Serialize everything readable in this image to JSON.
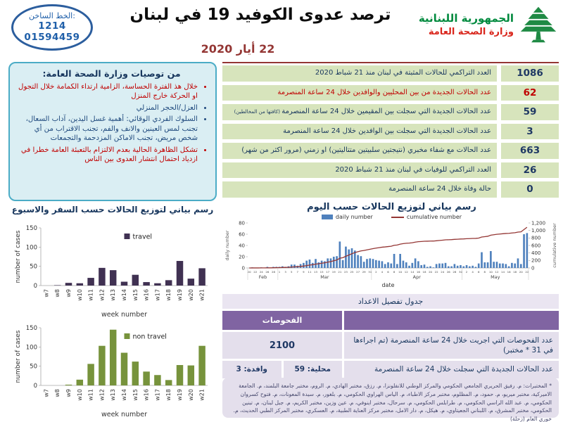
{
  "header": {
    "hotline": {
      "title": "الخط الساخن:",
      "line1": "1214",
      "line2": "01594459"
    },
    "title": "ترصد عدوى الكوفيد 19 في لبنان",
    "date": "22 أيار 2020",
    "ministry": {
      "name": "الجمهورية اللبنانية",
      "dept": "وزارة الصحة العامة"
    }
  },
  "recommendations": {
    "title": "من توصيات وزارة الصحة العامة:",
    "items": [
      {
        "text": "خلال هذ الفترة الحساسة، الزامية ارتداء الكمامة خلال التجول او الحركة خارج المنزل",
        "color": "red"
      },
      {
        "text": "العزل/الحجر المنزلي",
        "color": "blue"
      },
      {
        "text": "السلوك الفردي الوقائي: أهمية غسل اليدين، آداب السعال، تجنب لمس العينين والانف والفم، تجنب الاقتراب من أي شخص مريض، تجنب الاماكن المزدحمة والتجمعات",
        "color": "blue"
      },
      {
        "text": "تشكل الظاهرة الحالية بعدم الالتزام بالتعبئة العامة خطرا في ازدياد احتمال انتشار العدوى بين الناس",
        "color": "red"
      }
    ]
  },
  "stats": {
    "rows": [
      {
        "label": "العدد التراكمي للحالات المثبتة في لبنان منذ 21 شباط 2020",
        "value": "1086",
        "color": "blue"
      },
      {
        "label": "عدد الحالات الجديدة من بين المحليين والوافدين خلال 24 ساعة المنصرمة",
        "value": "62",
        "color": "red"
      },
      {
        "label": "عدد الحالات الجديدة التي سجلت بين المقيمين خلال 24 ساعة المنصرمة",
        "note": "(كافتها من المخالطين)",
        "value": "59",
        "color": "blue"
      },
      {
        "label": "عدد الحالات الجديدة التي سجلت بين الوافدين خلال 24 ساعة المنصرمة",
        "value": "3",
        "color": "blue"
      },
      {
        "label": "عدد الحالات مع شفاء مخبري (نتيجتين سلبيتين متتاليتين) او زمني (مرور اكثر من شهر)",
        "value": "663",
        "color": "blue"
      },
      {
        "label": "العدد التراكمي للوفيات في لبنان منذ 21 شباط 2020",
        "value": "26",
        "color": "blue"
      },
      {
        "label": "حالة وفاة خلال 24 ساعة المنصرمة",
        "value": "0",
        "color": "blue"
      }
    ]
  },
  "details_table": {
    "title": "جدول تفصيل الاعداد",
    "header": "الفحوصات",
    "rows": [
      {
        "label": "عدد الفحوصات التي اجريت خلال 24 ساعة المنصرمة (تم اجراءها في 31 * مختبر)",
        "value": "2100"
      },
      {
        "label": "عدد الحالات الجديدة التي سجلت خلال 24 ساعة المنصرمة",
        "local": "محلية: 59",
        "arrivals": "وافدة: 3"
      }
    ]
  },
  "footnote": "* المختبرات: م. رفيق الحريري الجامعي الحكومي والمركز الوطني للانفلونزا، م. رزق، مختبر الهادي، م. الروم، مختبر جامعة البلمند، م. الجامعة الاميركية، مختبر ميريو، م. حمود، م. المظلوم، مختبر مركز الاطباء، م. الياس الهراوي الحكومي، م. بلغور، م. سيدة المعونات، م. فتوح كسروان الحكومي، م. عبد الله الراسي الحكومي، م. طرابلس الحكومي، م. سرحال، مختبر اينوفي، م. عين وزين، مختبر الكريم، م. جبل لبنان، م. تبنين الحكومي، مختبر المشرق، م. اللبناني الجعيتاوي، م. هيكل، م. دار الامل، مختبر مركز العناية الطبية، م. العسكري، مختبر المركز الطبي الحديث، م. خوري العام (زحلة)",
  "chart_data": [
    {
      "id": "daily_distribution",
      "type": "bar+line",
      "title": "رسم بياني لتوزيع الحالات حسب اليوم",
      "xlabel": "date",
      "ylabel_left": "daily number",
      "ylabel_right": "cumulative number",
      "ylim_left": [
        0,
        80
      ],
      "ylim_right": [
        0,
        1200
      ],
      "legend": [
        {
          "label": "daily number",
          "type": "bar",
          "color": "#4f81bd"
        },
        {
          "label": "cumulative number",
          "type": "line",
          "color": "#943634"
        }
      ],
      "months": [
        {
          "label": "Feb",
          "from": 20,
          "to": 29
        },
        {
          "label": "Mar",
          "from": 1,
          "to": 31
        },
        {
          "label": "Apr",
          "from": 1,
          "to": 30
        },
        {
          "label": "May",
          "from": 1,
          "to": 22
        }
      ],
      "daily_values": [
        0,
        1,
        0,
        0,
        1,
        0,
        2,
        0,
        2,
        2,
        2,
        3,
        2,
        3,
        6,
        6,
        4,
        7,
        9,
        13,
        15,
        9,
        16,
        10,
        13,
        12,
        17,
        17,
        20,
        21,
        47,
        14,
        38,
        33,
        35,
        31,
        23,
        21,
        11,
        16,
        17,
        16,
        14,
        13,
        12,
        7,
        10,
        8,
        25,
        7,
        25,
        13,
        10,
        4,
        9,
        17,
        12,
        5,
        6,
        2,
        3,
        1,
        7,
        8,
        8,
        9,
        3,
        3,
        7,
        4,
        5,
        3,
        5,
        3,
        4,
        2,
        8,
        28,
        10,
        10,
        30,
        11,
        11,
        8,
        8,
        7,
        3,
        9,
        8,
        17,
        7,
        60,
        62
      ],
      "cumulative_final": 1086,
      "bar_color": "#4f81bd",
      "line_color": "#943634"
    },
    {
      "id": "travel",
      "type": "bar",
      "title": "رسم بياني لتوزيع الحالات حسب السفر والاسبوع",
      "legend": "travel",
      "categories": [
        "w7",
        "w8",
        "w9",
        "w10",
        "w11",
        "w12",
        "w13",
        "w14",
        "w15",
        "w16",
        "w17",
        "w18",
        "w19",
        "w20",
        "w21"
      ],
      "values": [
        0,
        1,
        7,
        6,
        20,
        46,
        40,
        10,
        28,
        9,
        6,
        14,
        64,
        18,
        45
      ],
      "xlabel": "week number",
      "ylabel": "number of cases",
      "ylim": [
        0,
        150
      ],
      "color": "#403152"
    },
    {
      "id": "non_travel",
      "type": "bar",
      "legend": "non travel",
      "categories": [
        "w7",
        "w8",
        "w9",
        "w10",
        "w11",
        "w12",
        "w13",
        "w14",
        "w15",
        "w16",
        "w17",
        "w18",
        "w19",
        "w20",
        "w21"
      ],
      "values": [
        0,
        0,
        2,
        15,
        56,
        103,
        145,
        85,
        62,
        36,
        27,
        14,
        53,
        52,
        103
      ],
      "xlabel": "week number",
      "ylabel": "number of cases",
      "ylim": [
        0,
        150
      ],
      "color": "#77933c"
    }
  ]
}
